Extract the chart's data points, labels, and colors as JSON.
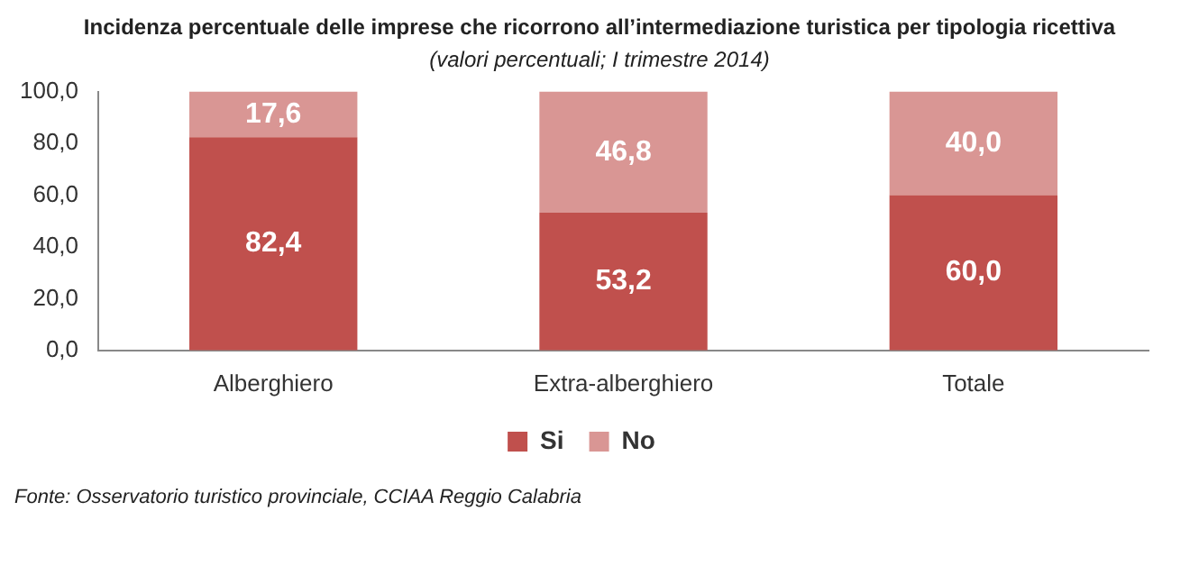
{
  "chart_data": {
    "type": "bar",
    "title": "Incidenza percentuale delle imprese che ricorrono all’intermediazione turistica per tipologia ricettiva",
    "subtitle": "(valori percentuali; I trimestre  2014)",
    "categories": [
      "Alberghiero",
      "Extra-alberghiero",
      "Totale"
    ],
    "stacked": true,
    "series": [
      {
        "name": "Si",
        "color": "#c0504d",
        "values": [
          82.4,
          53.2,
          60.0
        ],
        "value_labels": [
          "82,4",
          "53,2",
          "60,0"
        ]
      },
      {
        "name": "No",
        "color": "#d99694",
        "values": [
          17.6,
          46.8,
          40.0
        ],
        "value_labels": [
          "17,6",
          "46,8",
          "40,0"
        ]
      }
    ],
    "ylim": [
      0,
      100
    ],
    "yticks": [
      {
        "value": 0,
        "label": "0,0"
      },
      {
        "value": 20,
        "label": "20,0"
      },
      {
        "value": 40,
        "label": "40,0"
      },
      {
        "value": 60,
        "label": "60,0"
      },
      {
        "value": 80,
        "label": "80,0"
      },
      {
        "value": 100,
        "label": "100,0"
      }
    ],
    "grid": false,
    "legend": "bottom",
    "annotations": [
      "Fonte: Osservatorio turistico provinciale, CCIAA Reggio Calabria"
    ]
  }
}
